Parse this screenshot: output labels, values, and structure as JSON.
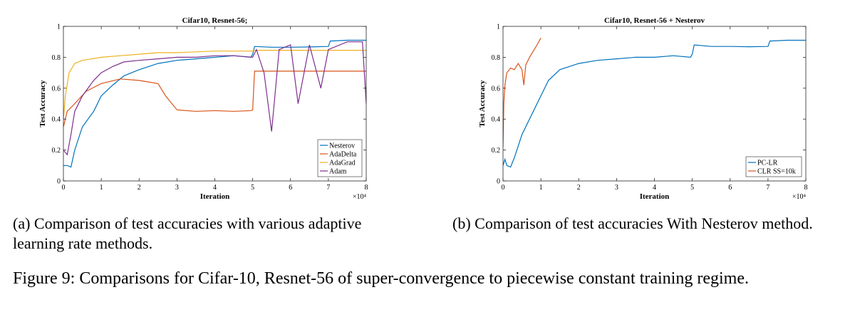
{
  "figure_caption": "Figure 9: Comparisons for Cifar-10, Resnet-56 of super-convergence to piecewise constant training regime.",
  "panels": [
    {
      "caption": "(a) Comparison of test accuracies with various adaptive learning rate methods."
    },
    {
      "caption": "(b) Comparison of test accuracies With Nesterov method."
    }
  ],
  "chart_data": [
    {
      "type": "line",
      "title": "Cifar10, Resnet-56;",
      "xlabel": "Iteration",
      "ylabel": "Test Accuracy",
      "x_multiplier_label": "×10⁴",
      "xlim": [
        0,
        8
      ],
      "ylim": [
        0,
        1
      ],
      "x_ticks": [
        "0",
        "1",
        "2",
        "3",
        "4",
        "5",
        "6",
        "7",
        "8"
      ],
      "y_ticks": [
        "0",
        "0.2",
        "0.4",
        "0.6",
        "0.8",
        "1"
      ],
      "legend_position": "bottom-right",
      "series": [
        {
          "name": "Nesterov",
          "color": "#0072bd",
          "x": [
            0,
            0.1,
            0.2,
            0.3,
            0.5,
            0.8,
            1.0,
            1.3,
            1.6,
            2.0,
            2.5,
            3.0,
            3.5,
            4.0,
            4.5,
            4.95,
            5.0,
            5.05,
            5.5,
            6.0,
            6.5,
            7.0,
            7.05,
            7.5,
            8.0
          ],
          "y": [
            0.1,
            0.1,
            0.09,
            0.2,
            0.35,
            0.45,
            0.55,
            0.62,
            0.68,
            0.72,
            0.76,
            0.78,
            0.79,
            0.8,
            0.81,
            0.8,
            0.82,
            0.87,
            0.865,
            0.865,
            0.867,
            0.87,
            0.905,
            0.91,
            0.91
          ]
        },
        {
          "name": "AdaDelta",
          "color": "#d95319",
          "x": [
            0,
            0.1,
            0.3,
            0.6,
            1.0,
            1.5,
            2.0,
            2.5,
            2.7,
            3.0,
            3.5,
            4.0,
            4.5,
            4.95,
            5.0,
            5.05,
            6.0,
            7.0,
            8.0
          ],
          "y": [
            0.35,
            0.45,
            0.5,
            0.58,
            0.63,
            0.66,
            0.65,
            0.63,
            0.55,
            0.46,
            0.45,
            0.455,
            0.45,
            0.455,
            0.46,
            0.71,
            0.71,
            0.71,
            0.71
          ]
        },
        {
          "name": "AdaGrad",
          "color": "#edb120",
          "x": [
            0,
            0.05,
            0.15,
            0.3,
            0.5,
            1.0,
            1.5,
            2.0,
            2.5,
            3.0,
            3.5,
            4.0,
            4.5,
            4.95,
            5.0,
            5.05,
            6.0,
            7.0,
            8.0
          ],
          "y": [
            0.4,
            0.55,
            0.7,
            0.76,
            0.78,
            0.8,
            0.81,
            0.82,
            0.83,
            0.83,
            0.835,
            0.84,
            0.84,
            0.84,
            0.84,
            0.845,
            0.845,
            0.845,
            0.845
          ]
        },
        {
          "name": "Adam",
          "color": "#7e2f8e",
          "x": [
            0,
            0.1,
            0.2,
            0.3,
            0.5,
            0.8,
            1.0,
            1.3,
            1.6,
            2.0,
            2.5,
            3.0,
            3.5,
            4.0,
            4.5,
            5.0,
            5.1,
            5.3,
            5.5,
            5.7,
            6.0,
            6.2,
            6.5,
            6.8,
            7.0,
            7.5,
            7.9,
            8.0
          ],
          "y": [
            0.2,
            0.17,
            0.3,
            0.45,
            0.55,
            0.65,
            0.7,
            0.74,
            0.77,
            0.78,
            0.79,
            0.8,
            0.8,
            0.81,
            0.81,
            0.8,
            0.85,
            0.7,
            0.32,
            0.85,
            0.88,
            0.5,
            0.88,
            0.6,
            0.85,
            0.9,
            0.9,
            0.5
          ]
        }
      ]
    },
    {
      "type": "line",
      "title": "Cifar10, Resnet-56 + Nesterov",
      "xlabel": "Iteration",
      "ylabel": "Test Accuracy",
      "x_multiplier_label": "×10⁴",
      "xlim": [
        0,
        8
      ],
      "ylim": [
        0,
        1
      ],
      "x_ticks": [
        "0",
        "1",
        "2",
        "3",
        "4",
        "5",
        "6",
        "7",
        "8"
      ],
      "y_ticks": [
        "0",
        "0.2",
        "0.4",
        "0.6",
        "0.8",
        "1"
      ],
      "legend_position": "bottom-right",
      "series": [
        {
          "name": "PC-LR",
          "color": "#0072bd",
          "x": [
            0,
            0.05,
            0.1,
            0.2,
            0.3,
            0.5,
            0.8,
            1.0,
            1.2,
            1.5,
            2.0,
            2.5,
            3.0,
            3.5,
            4.0,
            4.5,
            4.95,
            5.0,
            5.05,
            5.5,
            6.0,
            6.5,
            7.0,
            7.05,
            7.5,
            8.0
          ],
          "y": [
            0.1,
            0.14,
            0.1,
            0.09,
            0.15,
            0.3,
            0.45,
            0.55,
            0.65,
            0.72,
            0.76,
            0.78,
            0.79,
            0.8,
            0.8,
            0.81,
            0.8,
            0.82,
            0.88,
            0.87,
            0.87,
            0.868,
            0.87,
            0.905,
            0.91,
            0.91
          ]
        },
        {
          "name": "CLR SS=10k",
          "color": "#d95319",
          "x": [
            0,
            0.02,
            0.05,
            0.1,
            0.2,
            0.3,
            0.4,
            0.5,
            0.55,
            0.6,
            0.7,
            0.8,
            0.9,
            1.0
          ],
          "y": [
            0.22,
            0.5,
            0.62,
            0.7,
            0.73,
            0.72,
            0.76,
            0.72,
            0.62,
            0.75,
            0.8,
            0.84,
            0.88,
            0.925
          ]
        }
      ]
    }
  ]
}
